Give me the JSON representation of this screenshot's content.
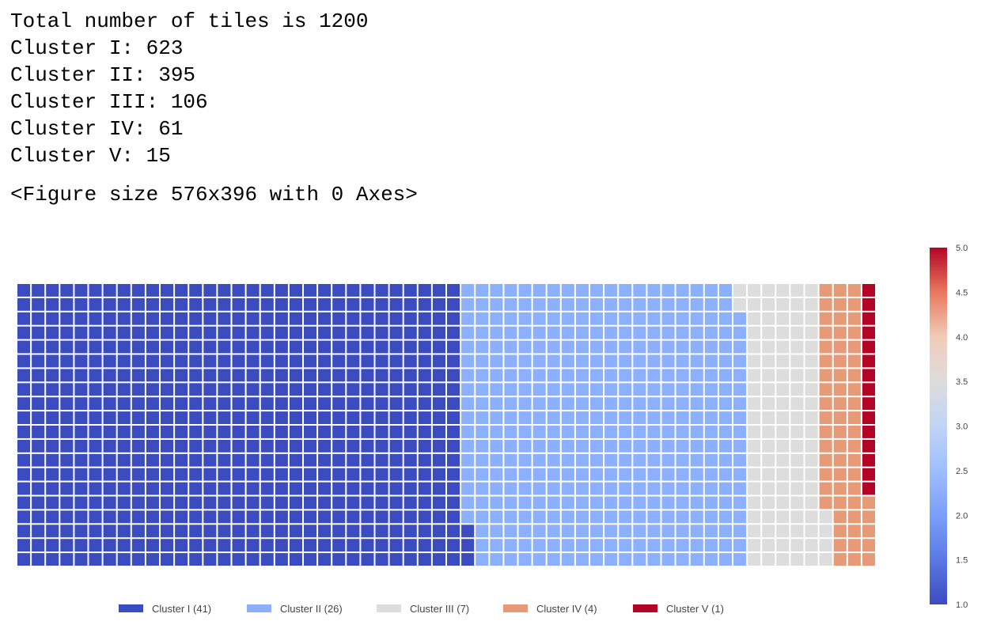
{
  "output": {
    "lines": [
      "Total number of tiles is 1200",
      "Cluster I: 623",
      "Cluster II: 395",
      "Cluster III: 106",
      "Cluster IV: 61",
      "Cluster V: 15"
    ],
    "figure_repr": "<Figure size 576x396 with 0 Axes>"
  },
  "chart_data": {
    "type": "waffle",
    "rows": 20,
    "columns": 60,
    "fill_order": "column-major",
    "categories": [
      "Cluster I",
      "Cluster II",
      "Cluster III",
      "Cluster IV",
      "Cluster V"
    ],
    "tiles": [
      623,
      395,
      106,
      61,
      15
    ],
    "colors": [
      "#3b4cc0",
      "#8db0fe",
      "#dddddd",
      "#e69a78",
      "#b40426"
    ],
    "legend": {
      "placement": "bottom",
      "entries": [
        "Cluster I (41)",
        "Cluster II (26)",
        "Cluster III (7)",
        "Cluster IV (4)",
        "Cluster V (1)"
      ]
    },
    "colorbar": {
      "range": [
        1.0,
        5.0
      ],
      "ticks": [
        "1.0",
        "1.5",
        "2.0",
        "2.5",
        "3.0",
        "3.5",
        "4.0",
        "4.5",
        "5.0"
      ],
      "colormap": "coolwarm"
    }
  }
}
